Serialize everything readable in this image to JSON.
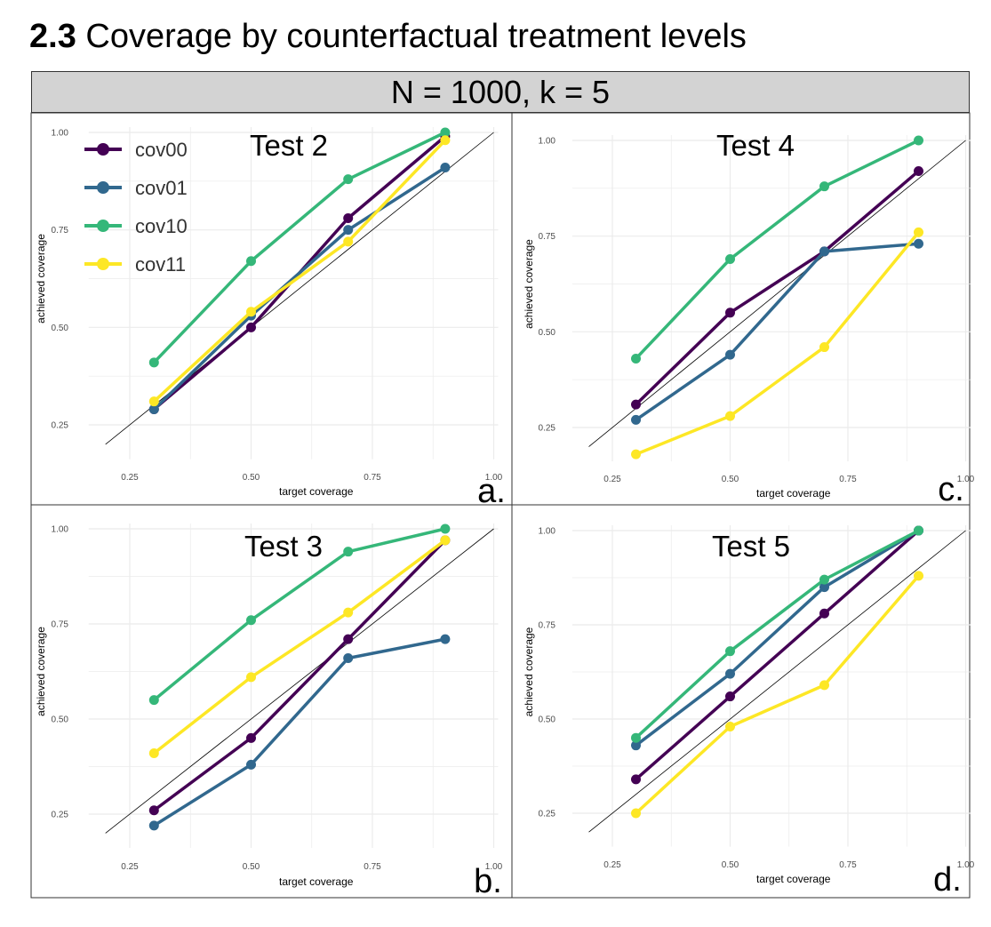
{
  "page": {
    "title_bold": "2.3",
    "title_rest": " Coverage by counterfactual treatment levels",
    "strip_label": "N = 1000, k = 5"
  },
  "colors": {
    "cov00": "#440154",
    "cov01": "#31688e",
    "cov10": "#35b779",
    "cov11": "#fde725",
    "diagonal": "#000000",
    "grid": "#ebebeb"
  },
  "legend": [
    "cov00",
    "cov01",
    "cov10",
    "cov11"
  ],
  "chart_data": [
    {
      "type": "line",
      "title": "Test 2",
      "panel_letter": "a.",
      "xlabel": "target coverage",
      "ylabel": "achieved coverage",
      "xlim": [
        0.18,
        1.0
      ],
      "ylim": [
        0.18,
        1.0
      ],
      "x_ticks": [
        "0.25",
        "0.50",
        "0.75",
        "1.00"
      ],
      "y_ticks": [
        "0.25",
        "0.50",
        "0.75",
        "1.00"
      ],
      "x": [
        0.3,
        0.5,
        0.7,
        0.9
      ],
      "series": [
        {
          "name": "cov00",
          "values": [
            0.29,
            0.5,
            0.78,
            0.99
          ]
        },
        {
          "name": "cov01",
          "values": [
            0.29,
            0.53,
            0.75,
            0.91
          ]
        },
        {
          "name": "cov10",
          "values": [
            0.41,
            0.67,
            0.88,
            1.0
          ]
        },
        {
          "name": "cov11",
          "values": [
            0.31,
            0.54,
            0.72,
            0.98
          ]
        }
      ]
    },
    {
      "type": "line",
      "title": "Test 4",
      "panel_letter": "c.",
      "xlabel": "target coverage",
      "ylabel": "achieved coverage",
      "xlim": [
        0.18,
        1.0
      ],
      "ylim": [
        0.18,
        1.0
      ],
      "x_ticks": [
        "0.25",
        "0.50",
        "0.75",
        "1.00"
      ],
      "y_ticks": [
        "0.25",
        "0.50",
        "0.75",
        "1.00"
      ],
      "x": [
        0.3,
        0.5,
        0.7,
        0.9
      ],
      "series": [
        {
          "name": "cov00",
          "values": [
            0.31,
            0.55,
            0.71,
            0.92
          ]
        },
        {
          "name": "cov01",
          "values": [
            0.27,
            0.44,
            0.71,
            0.73
          ]
        },
        {
          "name": "cov10",
          "values": [
            0.43,
            0.69,
            0.88,
            1.0
          ]
        },
        {
          "name": "cov11",
          "values": [
            0.18,
            0.28,
            0.46,
            0.76
          ]
        }
      ]
    },
    {
      "type": "line",
      "title": "Test 3",
      "panel_letter": "b.",
      "xlabel": "target coverage",
      "ylabel": "achieved coverage",
      "xlim": [
        0.18,
        1.0
      ],
      "ylim": [
        0.18,
        1.0
      ],
      "x_ticks": [
        "0.25",
        "0.50",
        "0.75",
        "1.00"
      ],
      "y_ticks": [
        "0.25",
        "0.50",
        "0.75",
        "1.00"
      ],
      "x": [
        0.3,
        0.5,
        0.7,
        0.9
      ],
      "series": [
        {
          "name": "cov00",
          "values": [
            0.26,
            0.45,
            0.71,
            0.97
          ]
        },
        {
          "name": "cov01",
          "values": [
            0.22,
            0.38,
            0.66,
            0.71
          ]
        },
        {
          "name": "cov10",
          "values": [
            0.55,
            0.76,
            0.94,
            1.0
          ]
        },
        {
          "name": "cov11",
          "values": [
            0.41,
            0.61,
            0.78,
            0.97
          ]
        }
      ]
    },
    {
      "type": "line",
      "title": "Test 5",
      "panel_letter": "d.",
      "xlabel": "target coverage",
      "ylabel": "achieved coverage",
      "xlim": [
        0.18,
        1.0
      ],
      "ylim": [
        0.18,
        1.0
      ],
      "x_ticks": [
        "0.25",
        "0.50",
        "0.75",
        "1.00"
      ],
      "y_ticks": [
        "0.25",
        "0.50",
        "0.75",
        "1.00"
      ],
      "x": [
        0.3,
        0.5,
        0.7,
        0.9
      ],
      "series": [
        {
          "name": "cov00",
          "values": [
            0.34,
            0.56,
            0.78,
            1.0
          ]
        },
        {
          "name": "cov01",
          "values": [
            0.43,
            0.62,
            0.85,
            1.0
          ]
        },
        {
          "name": "cov10",
          "values": [
            0.45,
            0.68,
            0.87,
            1.0
          ]
        },
        {
          "name": "cov11",
          "values": [
            0.25,
            0.48,
            0.59,
            0.88
          ]
        }
      ]
    }
  ]
}
